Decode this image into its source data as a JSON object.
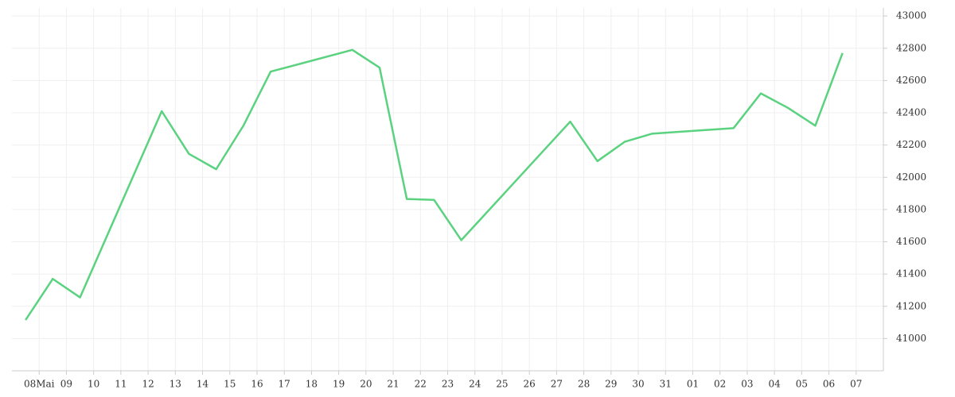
{
  "chart_data": {
    "type": "line",
    "x": [
      -0.5,
      0.5,
      1.5,
      4.5,
      5.5,
      6.5,
      7.5,
      8.5,
      11.5,
      12.5,
      13.5,
      14.5,
      15.5,
      19.5,
      20.5,
      21.5,
      22.5,
      25.5,
      26.5,
      27.5,
      28.5,
      29.5
    ],
    "series": [
      {
        "color": "#5ad27f",
        "values": [
          41115,
          41370,
          41255,
          42410,
          42145,
          42050,
          42320,
          42655,
          42790,
          42680,
          41865,
          41860,
          41610,
          42345,
          42100,
          42220,
          42270,
          42305,
          42520,
          42430,
          42320,
          42770
        ]
      }
    ],
    "xlim": [
      -1,
      31
    ],
    "xticks": [
      {
        "value": 0,
        "label": "08Mai"
      },
      {
        "value": 1,
        "label": "09"
      },
      {
        "value": 2,
        "label": "10"
      },
      {
        "value": 3,
        "label": "11"
      },
      {
        "value": 4,
        "label": "12"
      },
      {
        "value": 5,
        "label": "13"
      },
      {
        "value": 6,
        "label": "14"
      },
      {
        "value": 7,
        "label": "15"
      },
      {
        "value": 8,
        "label": "16"
      },
      {
        "value": 9,
        "label": "17"
      },
      {
        "value": 10,
        "label": "18"
      },
      {
        "value": 11,
        "label": "19"
      },
      {
        "value": 12,
        "label": "20"
      },
      {
        "value": 13,
        "label": "21"
      },
      {
        "value": 14,
        "label": "22"
      },
      {
        "value": 15,
        "label": "23"
      },
      {
        "value": 16,
        "label": "24"
      },
      {
        "value": 17,
        "label": "25"
      },
      {
        "value": 18,
        "label": "26"
      },
      {
        "value": 19,
        "label": "27"
      },
      {
        "value": 20,
        "label": "28"
      },
      {
        "value": 21,
        "label": "29"
      },
      {
        "value": 22,
        "label": "30"
      },
      {
        "value": 23,
        "label": "31"
      },
      {
        "value": 24,
        "label": "01"
      },
      {
        "value": 25,
        "label": "02"
      },
      {
        "value": 26,
        "label": "03"
      },
      {
        "value": 27,
        "label": "04"
      },
      {
        "value": 28,
        "label": "05"
      },
      {
        "value": 29,
        "label": "06"
      },
      {
        "value": 30,
        "label": "07"
      }
    ],
    "ylim": [
      40800,
      43050
    ],
    "yticks": [
      41000,
      41200,
      41400,
      41600,
      41800,
      42000,
      42200,
      42400,
      42600,
      42800,
      43000
    ],
    "grid": true,
    "y_axis_side": "right"
  }
}
